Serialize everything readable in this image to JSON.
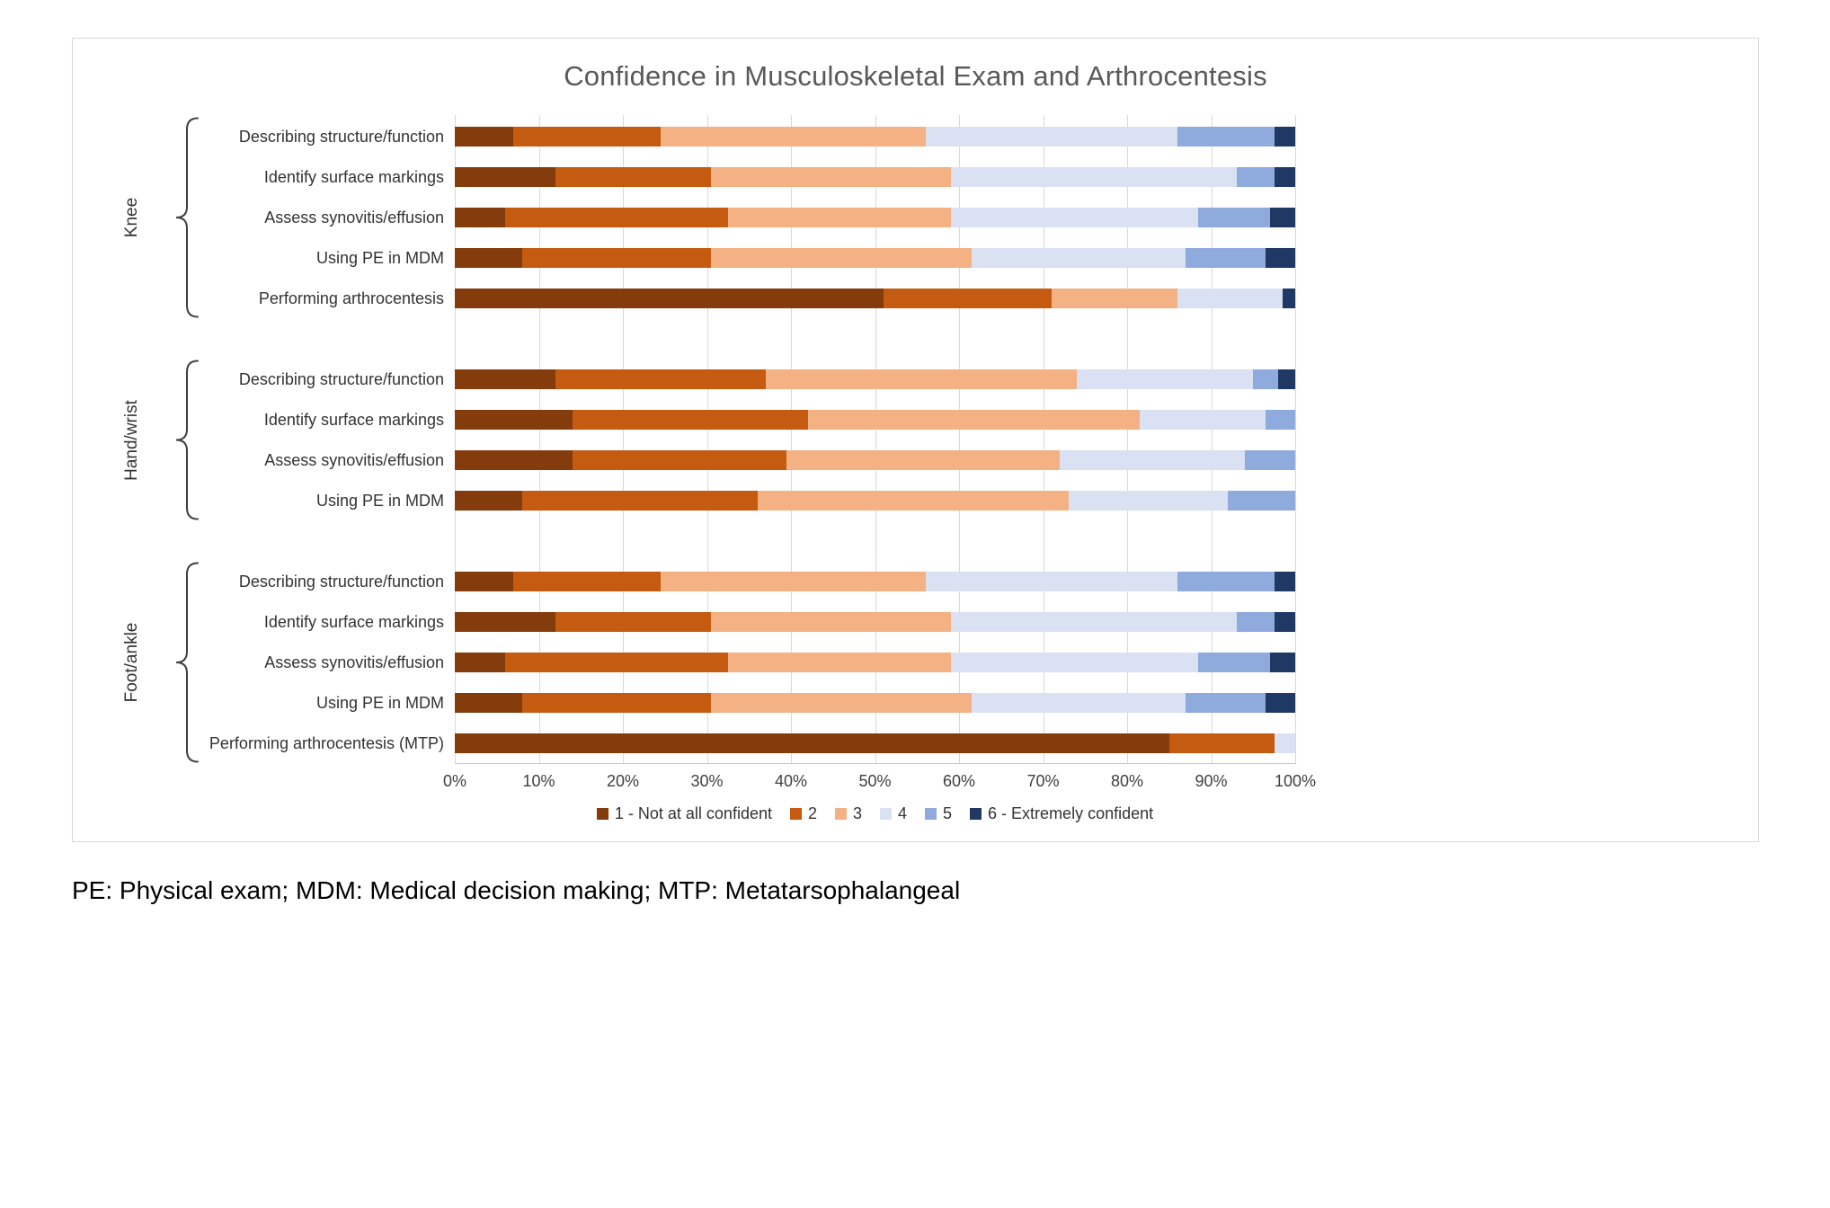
{
  "page": {
    "footnote": "PE: Physical exam; MDM: Medical decision making; MTP: Metatarsophalangeal"
  },
  "chart_data": {
    "type": "bar",
    "orientation": "horizontal",
    "stacked": true,
    "title": "Confidence in Musculoskeletal Exam and Arthrocentesis",
    "x_axis": {
      "min": 0,
      "max": 100,
      "ticks": [
        "0%",
        "10%",
        "20%",
        "30%",
        "40%",
        "50%",
        "60%",
        "70%",
        "80%",
        "90%",
        "100%"
      ]
    },
    "grid": "vertical",
    "legend_position": "bottom",
    "legend": [
      {
        "label": "1 - Not at all confident",
        "color": "#843C0C"
      },
      {
        "label": "2",
        "color": "#C55A11"
      },
      {
        "label": "3",
        "color": "#F4B183"
      },
      {
        "label": "4",
        "color": "#D9E1F2"
      },
      {
        "label": "5",
        "color": "#8FAADC"
      },
      {
        "label": "6 - Extremely confident",
        "color": "#1F3864"
      }
    ],
    "groups": [
      {
        "name": "Knee",
        "rows": [
          {
            "label": "Describing structure/function",
            "values": [
              7,
              17.5,
              31.5,
              30,
              11.5,
              2.5
            ]
          },
          {
            "label": "Identify surface markings",
            "values": [
              12,
              18.5,
              28.5,
              34,
              4.5,
              2.5
            ]
          },
          {
            "label": "Assess synovitis/effusion",
            "values": [
              6,
              26.5,
              26.5,
              29.5,
              8.5,
              3
            ]
          },
          {
            "label": "Using PE in MDM",
            "values": [
              8,
              22.5,
              31,
              25.5,
              9.5,
              3.5
            ]
          },
          {
            "label": "Performing arthrocentesis",
            "values": [
              51,
              20,
              15,
              12.5,
              0,
              1.5
            ]
          }
        ]
      },
      {
        "name": "Hand/wrist",
        "rows": [
          {
            "label": "Describing structure/function",
            "values": [
              12,
              25,
              37,
              21,
              3,
              2
            ]
          },
          {
            "label": "Identify surface markings",
            "values": [
              14,
              28,
              39.5,
              15,
              3.5,
              0
            ]
          },
          {
            "label": "Assess synovitis/effusion",
            "values": [
              14,
              25.5,
              32.5,
              22,
              6,
              0
            ]
          },
          {
            "label": "Using PE in MDM",
            "values": [
              8,
              28,
              37,
              19,
              8,
              0
            ]
          }
        ]
      },
      {
        "name": "Foot/ankle",
        "rows": [
          {
            "label": "Describing structure/function",
            "values": [
              7,
              17.5,
              31.5,
              30,
              11.5,
              2.5
            ]
          },
          {
            "label": "Identify surface markings",
            "values": [
              12,
              18.5,
              28.5,
              34,
              4.5,
              2.5
            ]
          },
          {
            "label": "Assess synovitis/effusion",
            "values": [
              6,
              26.5,
              26.5,
              29.5,
              8.5,
              3
            ]
          },
          {
            "label": "Using PE in MDM",
            "values": [
              8,
              22.5,
              31,
              25.5,
              9.5,
              3.5
            ]
          },
          {
            "label": "Performing arthrocentesis (MTP)",
            "values": [
              85,
              12.5,
              0,
              2.5,
              0,
              0
            ]
          }
        ]
      }
    ]
  }
}
